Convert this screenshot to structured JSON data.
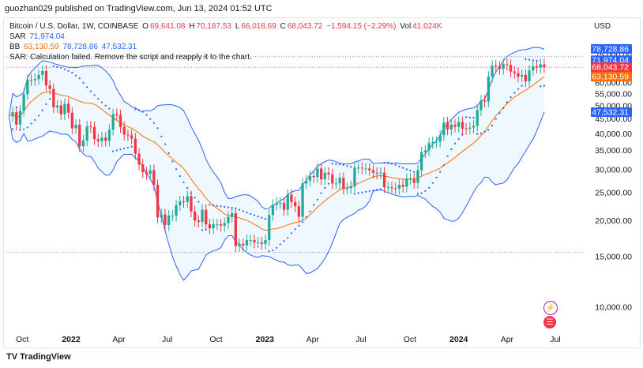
{
  "byline": "guozhan029 published on TradingView.com, Jun 13, 2024 01:52 UTC",
  "legend": {
    "symbol": "Bitcoin / U.S. Dollar, 1W, COINBASE",
    "o_label": "O",
    "o": "69,641.08",
    "h_label": "H",
    "h": "70,187.53",
    "l_label": "L",
    "l": "66,018.69",
    "c_label": "C",
    "c": "68,043.72",
    "change": "−1,594.15 (−2.29%)",
    "vol_label": "Vol",
    "vol": "41.024K",
    "sar_label": "SAR",
    "sar": "71,974.04",
    "bb_label": "BB",
    "bb_basis": "63,130.59",
    "bb_upper": "78,728.86",
    "bb_lower": "47,532.31",
    "error": "SAR: Calculation failed. Remove the script and reapply it to the chart."
  },
  "currency": "USD",
  "footer": "TradingView",
  "colors": {
    "up": "#22ab94",
    "down": "#f23645",
    "basis": "#ff6d00",
    "band": "#2962ff",
    "sar": "#2962ff"
  },
  "chart_data": {
    "type": "candlestick",
    "title": "Bitcoin / U.S. Dollar, 1W, COINBASE",
    "y_scale": "log",
    "ylim": [
      8500,
      100000
    ],
    "y_ticks": [
      10000,
      15000,
      20000,
      25000,
      30000,
      35000,
      40000,
      45000,
      50000,
      55000,
      60000,
      65000,
      70000,
      75000,
      80000
    ],
    "y_tick_labels": [
      "10,000.00",
      "15,000.00",
      "20,000.00",
      "25,000.00",
      "30,000.00",
      "35,000.00",
      "40,000.00",
      "45,000.00",
      "50,000.00",
      "55,000.00",
      "60,000.00",
      "65,000.00",
      "70,000.00",
      "75,000.00",
      "80,000.00"
    ],
    "x_ticks": [
      {
        "date": "2021-10-01",
        "label": "Oct",
        "bold": false
      },
      {
        "date": "2022-01-01",
        "label": "2022",
        "bold": true
      },
      {
        "date": "2022-04-01",
        "label": "Apr",
        "bold": false
      },
      {
        "date": "2022-07-01",
        "label": "Jul",
        "bold": false
      },
      {
        "date": "2022-10-01",
        "label": "Oct",
        "bold": false
      },
      {
        "date": "2023-01-01",
        "label": "2023",
        "bold": true
      },
      {
        "date": "2023-04-01",
        "label": "Apr",
        "bold": false
      },
      {
        "date": "2023-07-01",
        "label": "Jul",
        "bold": false
      },
      {
        "date": "2023-10-01",
        "label": "Oct",
        "bold": false
      },
      {
        "date": "2024-01-01",
        "label": "2024",
        "bold": true
      },
      {
        "date": "2024-04-01",
        "label": "Apr",
        "bold": false
      },
      {
        "date": "2024-07-01",
        "label": "Jul",
        "bold": false
      }
    ],
    "x_range": [
      "2021-09-01",
      "2024-08-25"
    ],
    "close_series": [
      [
        "2021-09-06",
        46000
      ],
      [
        "2021-09-13",
        47500
      ],
      [
        "2021-09-20",
        43000
      ],
      [
        "2021-09-27",
        48000
      ],
      [
        "2021-10-04",
        54900
      ],
      [
        "2021-10-11",
        61500
      ],
      [
        "2021-10-18",
        61300
      ],
      [
        "2021-10-25",
        61900
      ],
      [
        "2021-11-01",
        64000
      ],
      [
        "2021-11-08",
        66000
      ],
      [
        "2021-11-15",
        58800
      ],
      [
        "2021-11-22",
        57200
      ],
      [
        "2021-11-29",
        49400
      ],
      [
        "2021-12-06",
        50100
      ],
      [
        "2021-12-13",
        46700
      ],
      [
        "2021-12-20",
        50800
      ],
      [
        "2021-12-27",
        47300
      ],
      [
        "2022-01-03",
        41800
      ],
      [
        "2022-01-10",
        43000
      ],
      [
        "2022-01-17",
        36200
      ],
      [
        "2022-01-24",
        37900
      ],
      [
        "2022-01-31",
        42400
      ],
      [
        "2022-02-07",
        42200
      ],
      [
        "2022-02-14",
        38300
      ],
      [
        "2022-02-21",
        37700
      ],
      [
        "2022-02-28",
        38800
      ],
      [
        "2022-03-07",
        37800
      ],
      [
        "2022-03-14",
        41300
      ],
      [
        "2022-03-21",
        46800
      ],
      [
        "2022-03-28",
        46400
      ],
      [
        "2022-04-04",
        42200
      ],
      [
        "2022-04-11",
        39700
      ],
      [
        "2022-04-18",
        39500
      ],
      [
        "2022-04-25",
        38500
      ],
      [
        "2022-05-02",
        34100
      ],
      [
        "2022-05-09",
        31300
      ],
      [
        "2022-05-16",
        29400
      ],
      [
        "2022-05-23",
        29000
      ],
      [
        "2022-05-30",
        29900
      ],
      [
        "2022-06-06",
        26600
      ],
      [
        "2022-06-13",
        20500
      ],
      [
        "2022-06-20",
        21000
      ],
      [
        "2022-06-27",
        19300
      ],
      [
        "2022-07-04",
        20800
      ],
      [
        "2022-07-11",
        20800
      ],
      [
        "2022-07-18",
        22600
      ],
      [
        "2022-07-25",
        23300
      ],
      [
        "2022-08-01",
        23200
      ],
      [
        "2022-08-08",
        24300
      ],
      [
        "2022-08-15",
        21500
      ],
      [
        "2022-08-22",
        20000
      ],
      [
        "2022-08-29",
        19800
      ],
      [
        "2022-09-05",
        21800
      ],
      [
        "2022-09-12",
        19400
      ],
      [
        "2022-09-19",
        18800
      ],
      [
        "2022-09-26",
        19400
      ],
      [
        "2022-10-03",
        19400
      ],
      [
        "2022-10-10",
        19200
      ],
      [
        "2022-10-17",
        19600
      ],
      [
        "2022-10-24",
        20600
      ],
      [
        "2022-10-31",
        21200
      ],
      [
        "2022-11-07",
        16300
      ],
      [
        "2022-11-14",
        16600
      ],
      [
        "2022-11-21",
        16400
      ],
      [
        "2022-11-28",
        17100
      ],
      [
        "2022-12-05",
        17100
      ],
      [
        "2022-12-12",
        16800
      ],
      [
        "2022-12-19",
        16800
      ],
      [
        "2022-12-26",
        16600
      ],
      [
        "2023-01-02",
        17100
      ],
      [
        "2023-01-09",
        20900
      ],
      [
        "2023-01-16",
        22700
      ],
      [
        "2023-01-23",
        23000
      ],
      [
        "2023-01-30",
        23000
      ],
      [
        "2023-02-06",
        21800
      ],
      [
        "2023-02-13",
        24600
      ],
      [
        "2023-02-20",
        23200
      ],
      [
        "2023-02-27",
        22400
      ],
      [
        "2023-03-06",
        20600
      ],
      [
        "2023-03-13",
        26900
      ],
      [
        "2023-03-20",
        27500
      ],
      [
        "2023-03-27",
        28500
      ],
      [
        "2023-04-03",
        28300
      ],
      [
        "2023-04-10",
        30300
      ],
      [
        "2023-04-17",
        27800
      ],
      [
        "2023-04-24",
        29300
      ],
      [
        "2023-05-01",
        28900
      ],
      [
        "2023-05-08",
        26900
      ],
      [
        "2023-05-15",
        26900
      ],
      [
        "2023-05-22",
        28100
      ],
      [
        "2023-05-29",
        25800
      ],
      [
        "2023-06-05",
        25900
      ],
      [
        "2023-06-12",
        26300
      ],
      [
        "2023-06-19",
        30500
      ],
      [
        "2023-06-26",
        30500
      ],
      [
        "2023-07-03",
        30300
      ],
      [
        "2023-07-10",
        30300
      ],
      [
        "2023-07-17",
        29900
      ],
      [
        "2023-07-24",
        29300
      ],
      [
        "2023-07-31",
        29100
      ],
      [
        "2023-08-07",
        29300
      ],
      [
        "2023-08-14",
        26100
      ],
      [
        "2023-08-21",
        26100
      ],
      [
        "2023-08-28",
        25900
      ],
      [
        "2023-09-04",
        25800
      ],
      [
        "2023-09-11",
        26600
      ],
      [
        "2023-09-18",
        26200
      ],
      [
        "2023-09-25",
        27900
      ],
      [
        "2023-10-02",
        27900
      ],
      [
        "2023-10-09",
        27000
      ],
      [
        "2023-10-16",
        29900
      ],
      [
        "2023-10-23",
        34500
      ],
      [
        "2023-10-30",
        35000
      ],
      [
        "2023-11-06",
        37100
      ],
      [
        "2023-11-13",
        37400
      ],
      [
        "2023-11-20",
        37500
      ],
      [
        "2023-11-27",
        39500
      ],
      [
        "2023-12-04",
        43800
      ],
      [
        "2023-12-11",
        41400
      ],
      [
        "2023-12-18",
        43000
      ],
      [
        "2023-12-25",
        42300
      ],
      [
        "2024-01-01",
        43900
      ],
      [
        "2024-01-08",
        41700
      ],
      [
        "2024-01-15",
        41600
      ],
      [
        "2024-01-22",
        42000
      ],
      [
        "2024-01-29",
        42600
      ],
      [
        "2024-02-05",
        48300
      ],
      [
        "2024-02-12",
        52100
      ],
      [
        "2024-02-19",
        51700
      ],
      [
        "2024-02-26",
        63100
      ],
      [
        "2024-03-04",
        68900
      ],
      [
        "2024-03-11",
        68400
      ],
      [
        "2024-03-18",
        67200
      ],
      [
        "2024-03-25",
        69700
      ],
      [
        "2024-04-01",
        69300
      ],
      [
        "2024-04-08",
        65700
      ],
      [
        "2024-04-15",
        64900
      ],
      [
        "2024-04-22",
        63100
      ],
      [
        "2024-04-29",
        63900
      ],
      [
        "2024-05-06",
        60800
      ],
      [
        "2024-05-13",
        66300
      ],
      [
        "2024-05-20",
        68500
      ],
      [
        "2024-05-27",
        67800
      ],
      [
        "2024-06-03",
        69600
      ],
      [
        "2024-06-10",
        68043.72
      ]
    ],
    "series": [
      {
        "name": "BB basis",
        "value": 63130.59
      },
      {
        "name": "BB upper",
        "value": 78728.86
      },
      {
        "name": "BB lower",
        "value": 47532.31
      },
      {
        "name": "SAR",
        "value": 71974.04
      }
    ],
    "horizontal_lines": [
      74000,
      68043.72,
      15500
    ],
    "price_tags": [
      {
        "value": 78728.86,
        "label": "78,728.86",
        "color": "#2962ff"
      },
      {
        "value": 71974.04,
        "label": "71,974.04",
        "color": "#2962ff"
      },
      {
        "value": 68043.72,
        "label": "68,043.72",
        "sub": "3d 23h",
        "color": "#f23645"
      },
      {
        "value": 63130.59,
        "label": "63,130.59",
        "color": "#ff6d00"
      },
      {
        "value": 47532.31,
        "label": "47,532.31",
        "color": "#2962ff"
      }
    ],
    "grid": false
  }
}
